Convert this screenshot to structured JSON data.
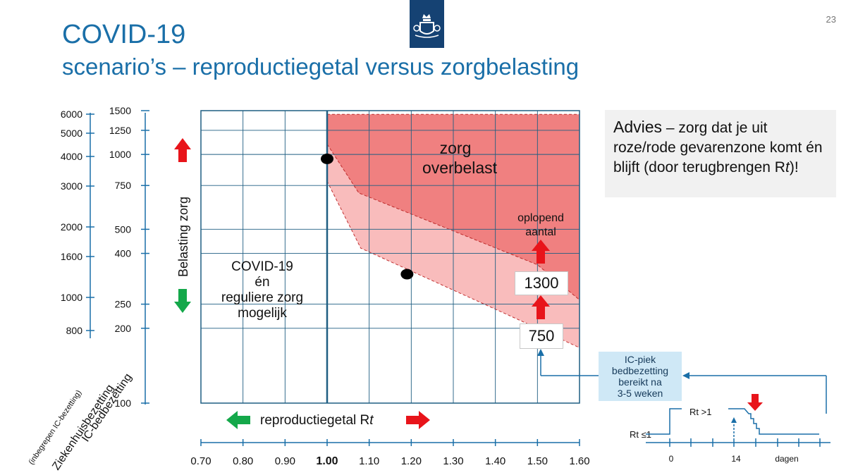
{
  "page": {
    "title": "COVID-19",
    "subtitle": "scenario’s – reproductiegetal versus zorgbelasting",
    "page_number": "23"
  },
  "advice": {
    "lead": "Advies",
    "text": " – zorg dat je uit roze/rode gevarenzone komt én blijft (door terugbrengen R",
    "italic": "t",
    "end": ")!"
  },
  "ic_box": {
    "lines": [
      "IC-piek",
      "bedbezetting",
      "bereikt na",
      "3-5 weken"
    ]
  },
  "values_boxes": {
    "upper": "1300",
    "lower": "750"
  },
  "colors": {
    "title": "#1a6fa8",
    "grid": "#1f5e82",
    "red_zone": "#f08080",
    "pink_zone": "#f9bcbc",
    "arrow_red": "#e8141a",
    "arrow_green": "#14a84a",
    "logo": "#154273"
  },
  "chart_data": {
    "type": "area",
    "title": "scenario’s – reproductiegetal versus zorgbelasting",
    "x_axis": {
      "label": "reproductiegetal R",
      "label_italic": "t",
      "ticks": [
        "0.70",
        "0.80",
        "0.90",
        "1.00",
        "1.10",
        "1.20",
        "1.30",
        "1.40",
        "1.50",
        "1.60"
      ],
      "range": [
        0.7,
        1.6
      ],
      "highlight_tick": "1.00"
    },
    "y_axis_ziekenhuis": {
      "label": "Ziekenhuisbezetting",
      "sublabel": "(inbegrepen IC-bezetting)",
      "ticks": [
        "6000",
        "5000",
        "4000",
        "3000",
        "2000",
        "1600",
        "1000",
        "800"
      ]
    },
    "y_axis_ic": {
      "label": "IC-bedbezetting",
      "ticks": [
        {
          "ic": 1500,
          "label": "1500"
        },
        {
          "ic": 1250,
          "label": "1250"
        },
        {
          "ic": 1000,
          "label": "1000"
        },
        {
          "ic": 750,
          "label": "750"
        },
        {
          "ic": 500,
          "label": "500"
        },
        {
          "ic": 400,
          "label": "400"
        },
        {
          "ic": 250,
          "label": "250"
        },
        {
          "ic": 200,
          "label": "200"
        },
        {
          "ic": 100,
          "label": "100"
        }
      ],
      "scale": "log",
      "range": [
        100,
        1500
      ]
    },
    "grid": true,
    "zones": [
      {
        "name": "zorg overbelast",
        "color": "red",
        "points": [
          [
            1.0,
            1450
          ],
          [
            1.6,
            1450
          ],
          [
            1.6,
            260
          ],
          [
            1.5,
            360
          ],
          [
            1.075,
            700
          ],
          [
            1.0,
            1100
          ]
        ]
      },
      {
        "name": "roze gevarenzone",
        "color": "pink",
        "points": [
          [
            1.0,
            1100
          ],
          [
            1.075,
            700
          ],
          [
            1.5,
            360
          ],
          [
            1.6,
            260
          ],
          [
            1.6,
            167
          ],
          [
            1.5,
            200
          ],
          [
            1.08,
            420
          ],
          [
            1.0,
            780
          ]
        ]
      }
    ],
    "points": [
      {
        "rt": 1.0,
        "ic": 960
      },
      {
        "rt": 1.19,
        "ic": 330
      }
    ],
    "annotations": {
      "safe_zone": [
        "COVID-19",
        "én",
        "reguliere zorg",
        "mogelijk"
      ],
      "overload_zone": [
        "zorg",
        "overbelast"
      ],
      "rising": [
        "oplopend",
        "aantal"
      ],
      "y_axis_title": "Belasting zorg"
    },
    "inset": {
      "type": "line",
      "x_ticks": [
        "0",
        "14",
        "dagen"
      ],
      "labels": {
        "low": "Rt ≤1",
        "high": "Rt >1"
      }
    }
  }
}
